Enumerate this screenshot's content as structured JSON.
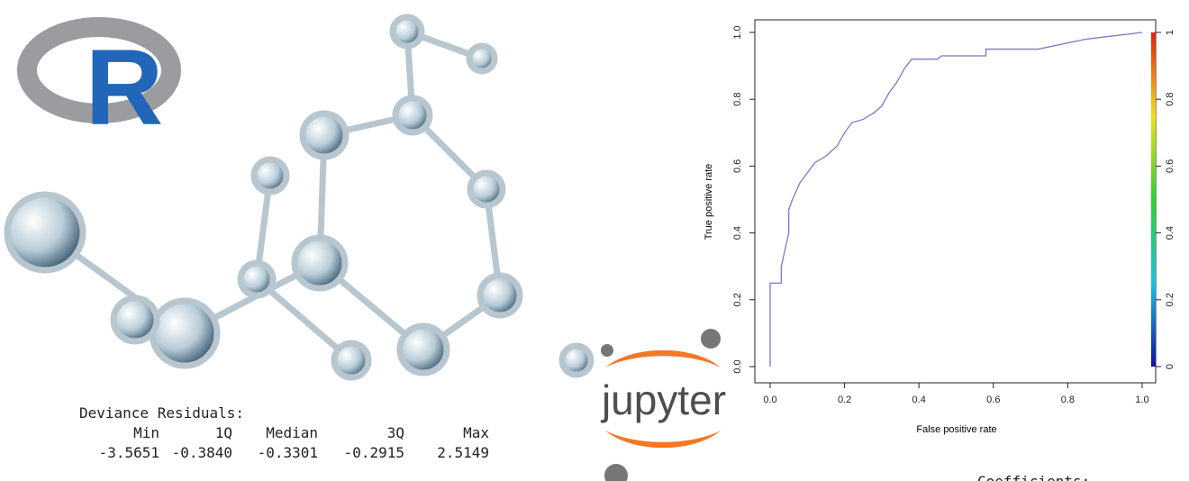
{
  "logo": {
    "letter": "R"
  },
  "residuals": {
    "title": "Deviance Residuals:",
    "headers": [
      "Min",
      "1Q",
      "Median",
      "3Q",
      "Max"
    ],
    "values": [
      "-3.5651",
      "-0.3840",
      "-0.3301",
      "-0.2915",
      "2.5149"
    ]
  },
  "jupyter": {
    "label": "jupyter"
  },
  "coefficients": {
    "title": "Coefficients:"
  },
  "chart_data": {
    "type": "line",
    "xlabel": "False positive rate",
    "ylabel": "True positive rate",
    "xlim": [
      0,
      1
    ],
    "ylim": [
      0,
      1
    ],
    "xticks": [
      {
        "value": 0,
        "label": "0.0"
      },
      {
        "value": 0.2,
        "label": "0.2"
      },
      {
        "value": 0.4,
        "label": "0.4"
      },
      {
        "value": 0.6,
        "label": "0.6"
      },
      {
        "value": 0.8,
        "label": "0.8"
      },
      {
        "value": 1,
        "label": "1.0"
      }
    ],
    "yticks": [
      {
        "value": 0,
        "label": "0.0"
      },
      {
        "value": 0.2,
        "label": "0.2"
      },
      {
        "value": 0.4,
        "label": "0.4"
      },
      {
        "value": 0.6,
        "label": "0.6"
      },
      {
        "value": 0.8,
        "label": "0.8"
      },
      {
        "value": 1,
        "label": "1.0"
      }
    ],
    "colorbar_lim": [
      0,
      1
    ],
    "colorbar_ticks": [
      0,
      0.2,
      0.4,
      0.6,
      0.8,
      1
    ],
    "series": [
      {
        "color": "#7a78c8",
        "x": [
          0,
          0,
          0.03,
          0.03,
          0.04,
          0.05,
          0.05,
          0.06,
          0.08,
          0.1,
          0.12,
          0.15,
          0.18,
          0.2,
          0.22,
          0.25,
          0.28,
          0.3,
          0.32,
          0.34,
          0.36,
          0.38,
          0.45,
          0.46,
          0.58,
          0.58,
          0.72,
          0.85,
          1
        ],
        "values": [
          0,
          0.25,
          0.25,
          0.3,
          0.35,
          0.4,
          0.47,
          0.5,
          0.55,
          0.58,
          0.61,
          0.63,
          0.66,
          0.7,
          0.73,
          0.74,
          0.76,
          0.78,
          0.82,
          0.85,
          0.89,
          0.92,
          0.92,
          0.93,
          0.93,
          0.95,
          0.95,
          0.98,
          1
        ]
      }
    ]
  }
}
